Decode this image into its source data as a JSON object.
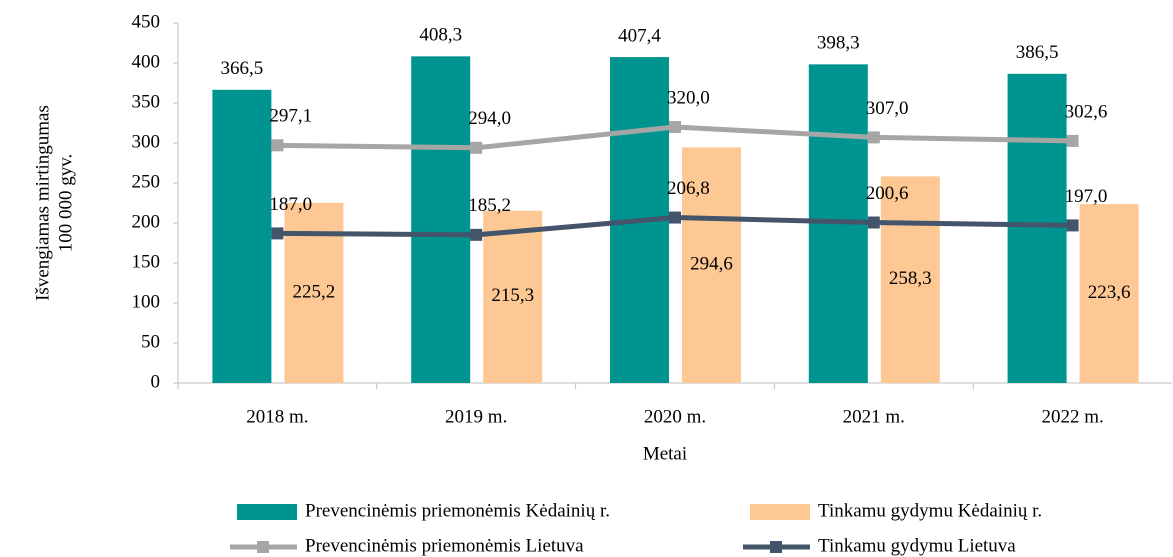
{
  "chart_data": {
    "type": "combo",
    "x_label": "Metai",
    "y_label": [
      "Išvengiamas mirtingumas",
      "100 000 gyv."
    ],
    "categories": [
      "2018 m.",
      "2019 m.",
      "2020 m.",
      "2021 m.",
      "2022 m."
    ],
    "ylim": [
      0,
      450
    ],
    "yticks": [
      0,
      50,
      100,
      150,
      200,
      250,
      300,
      350,
      400,
      450
    ],
    "grid": false,
    "series": [
      {
        "name": "Prevencinėmis priemonėmis Kėdainių r.",
        "type": "bar",
        "color": "#009490",
        "values": [
          366.5,
          408.3,
          407.4,
          398.3,
          386.5
        ],
        "value_labels": [
          "366,5",
          "408,3",
          "407,4",
          "398,3",
          "386,5"
        ]
      },
      {
        "name": "Tinkamu gydymu Kėdainių r.",
        "type": "bar",
        "color": "#FDC894",
        "values": [
          225.2,
          215.3,
          294.6,
          258.3,
          223.6
        ],
        "value_labels": [
          "225,2",
          "215,3",
          "294,6",
          "258,3",
          "223,6"
        ]
      },
      {
        "name": "Prevencinėmis priemonėmis Lietuva",
        "type": "line",
        "color": "#A6A6A6",
        "values": [
          297.1,
          294.0,
          320.0,
          307.0,
          302.6
        ],
        "value_labels": [
          "297,1",
          "294,0",
          "320,0",
          "307,0",
          "302,6"
        ]
      },
      {
        "name": "Tinkamu gydymu Lietuva",
        "type": "line",
        "color": "#44546A",
        "values": [
          187.0,
          185.2,
          206.8,
          200.6,
          197.0
        ],
        "value_labels": [
          "187,0",
          "185,2",
          "206,8",
          "200,6",
          "197,0"
        ]
      }
    ]
  }
}
